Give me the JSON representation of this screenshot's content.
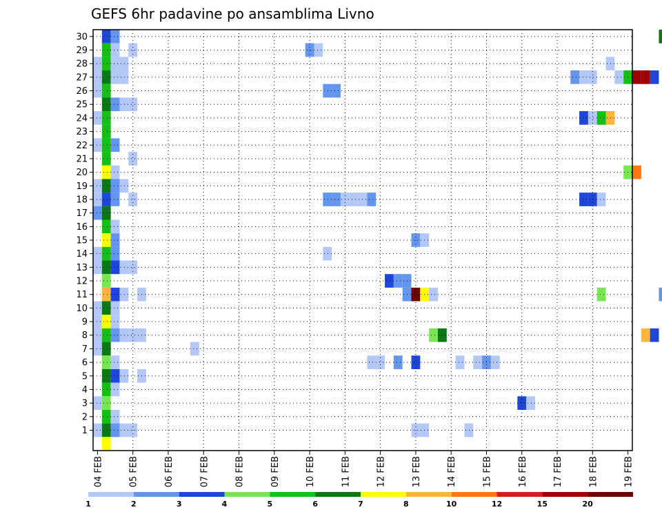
{
  "chart_data": {
    "type": "heatmap",
    "title": "GEFS 6hr padavine po ansamblima Livno",
    "x_labels": [
      "04 FEB",
      "05 FEB",
      "06 FEB",
      "07 FEB",
      "08 FEB",
      "09 FEB",
      "10 FEB",
      "11 FEB",
      "12 FEB",
      "13 FEB",
      "14 FEB",
      "15 FEB",
      "16 FEB",
      "17 FEB",
      "18 FEB",
      "19 FEB"
    ],
    "y_labels": [
      "1",
      "2",
      "3",
      "4",
      "5",
      "6",
      "7",
      "8",
      "9",
      "10",
      "11",
      "12",
      "13",
      "14",
      "15",
      "16",
      "17",
      "18",
      "19",
      "20",
      "21",
      "22",
      "23",
      "24",
      "25",
      "26",
      "27",
      "28",
      "29",
      "30"
    ],
    "steps_per_day": 4,
    "legend": {
      "labels": [
        "1",
        "2",
        "3",
        "4",
        "5",
        "6",
        "7",
        "8",
        "10",
        "12",
        "15",
        "20"
      ],
      "colors": [
        "#b4c8f8",
        "#6496f0",
        "#1e46d8",
        "#78e650",
        "#14c014",
        "#0a7814",
        "#ffff00",
        "#ffb43c",
        "#ff7814",
        "#d21e1e",
        "#a00000",
        "#6e0000"
      ]
    },
    "cells": [
      {
        "member": 30,
        "col": 1,
        "v": 3
      },
      {
        "member": 30,
        "col": 2,
        "v": 2
      },
      {
        "member": 30,
        "col": 64,
        "v": 6
      },
      {
        "member": 30,
        "col": 65,
        "v": 20
      },
      {
        "member": 30,
        "col": 71,
        "v": 8
      },
      {
        "member": 29,
        "col": 1,
        "v": 5
      },
      {
        "member": 29,
        "col": 2,
        "v": 1
      },
      {
        "member": 29,
        "col": 4,
        "v": 1
      },
      {
        "member": 29,
        "col": 24,
        "v": 2
      },
      {
        "member": 29,
        "col": 25,
        "v": 1
      },
      {
        "member": 28,
        "col": 0,
        "v": 1
      },
      {
        "member": 28,
        "col": 1,
        "v": 5
      },
      {
        "member": 28,
        "col": 2,
        "v": 1
      },
      {
        "member": 28,
        "col": 3,
        "v": 1
      },
      {
        "member": 28,
        "col": 58,
        "v": 1
      },
      {
        "member": 27,
        "col": 0,
        "v": 1
      },
      {
        "member": 27,
        "col": 1,
        "v": 6
      },
      {
        "member": 27,
        "col": 2,
        "v": 1
      },
      {
        "member": 27,
        "col": 3,
        "v": 1
      },
      {
        "member": 27,
        "col": 54,
        "v": 2
      },
      {
        "member": 27,
        "col": 55,
        "v": 1
      },
      {
        "member": 27,
        "col": 56,
        "v": 1
      },
      {
        "member": 27,
        "col": 59,
        "v": 1
      },
      {
        "member": 27,
        "col": 60,
        "v": 5
      },
      {
        "member": 27,
        "col": 61,
        "v": 15
      },
      {
        "member": 27,
        "col": 62,
        "v": 15
      },
      {
        "member": 27,
        "col": 63,
        "v": 3
      },
      {
        "member": 27,
        "col": 65,
        "v": 5
      },
      {
        "member": 27,
        "col": 68,
        "v": 3
      },
      {
        "member": 27,
        "col": 69,
        "v": 1
      },
      {
        "member": 27,
        "col": 70,
        "v": 8
      },
      {
        "member": 27,
        "col": 71,
        "v": 20
      },
      {
        "member": 27,
        "col": 72,
        "v": 20
      },
      {
        "member": 26,
        "col": 0,
        "v": 1
      },
      {
        "member": 26,
        "col": 1,
        "v": 5
      },
      {
        "member": 26,
        "col": 26,
        "v": 2
      },
      {
        "member": 26,
        "col": 27,
        "v": 2
      },
      {
        "member": 26,
        "col": 67,
        "v": 1
      },
      {
        "member": 25,
        "col": 1,
        "v": 6
      },
      {
        "member": 25,
        "col": 2,
        "v": 2
      },
      {
        "member": 25,
        "col": 3,
        "v": 1
      },
      {
        "member": 25,
        "col": 4,
        "v": 1
      },
      {
        "member": 25,
        "col": 67,
        "v": 1
      },
      {
        "member": 25,
        "col": 68,
        "v": 2
      },
      {
        "member": 25,
        "col": 69,
        "v": 7
      },
      {
        "member": 25,
        "col": 70,
        "v": 7
      },
      {
        "member": 25,
        "col": 71,
        "v": 5
      },
      {
        "member": 25,
        "col": 72,
        "v": 6
      },
      {
        "member": 24,
        "col": 0,
        "v": 1
      },
      {
        "member": 24,
        "col": 1,
        "v": 5
      },
      {
        "member": 24,
        "col": 55,
        "v": 3
      },
      {
        "member": 24,
        "col": 56,
        "v": 1
      },
      {
        "member": 24,
        "col": 57,
        "v": 5
      },
      {
        "member": 24,
        "col": 58,
        "v": 8
      },
      {
        "member": 24,
        "col": 67,
        "v": 1
      },
      {
        "member": 24,
        "col": 68,
        "v": 10
      },
      {
        "member": 24,
        "col": 69,
        "v": 5
      },
      {
        "member": 24,
        "col": 70,
        "v": 3
      },
      {
        "member": 24,
        "col": 71,
        "v": 6
      },
      {
        "member": 23,
        "col": 1,
        "v": 5
      },
      {
        "member": 23,
        "col": 72,
        "v": 3
      },
      {
        "member": 22,
        "col": 0,
        "v": 1
      },
      {
        "member": 22,
        "col": 1,
        "v": 5
      },
      {
        "member": 22,
        "col": 2,
        "v": 2
      },
      {
        "member": 22,
        "col": 68,
        "v": 1
      },
      {
        "member": 22,
        "col": 69,
        "v": 1
      },
      {
        "member": 22,
        "col": 70,
        "v": 1
      },
      {
        "member": 22,
        "col": 71,
        "v": 1
      },
      {
        "member": 21,
        "col": 1,
        "v": 5
      },
      {
        "member": 21,
        "col": 4,
        "v": 1
      },
      {
        "member": 20,
        "col": 1,
        "v": 7
      },
      {
        "member": 20,
        "col": 2,
        "v": 1
      },
      {
        "member": 20,
        "col": 60,
        "v": 4
      },
      {
        "member": 20,
        "col": 61,
        "v": 10
      },
      {
        "member": 19,
        "col": 0,
        "v": 1
      },
      {
        "member": 19,
        "col": 1,
        "v": 6
      },
      {
        "member": 19,
        "col": 2,
        "v": 2
      },
      {
        "member": 19,
        "col": 3,
        "v": 1
      },
      {
        "member": 19,
        "col": 66,
        "v": 1
      },
      {
        "member": 18,
        "col": 0,
        "v": 1
      },
      {
        "member": 18,
        "col": 1,
        "v": 3
      },
      {
        "member": 18,
        "col": 2,
        "v": 2
      },
      {
        "member": 18,
        "col": 4,
        "v": 1
      },
      {
        "member": 18,
        "col": 26,
        "v": 2
      },
      {
        "member": 18,
        "col": 27,
        "v": 2
      },
      {
        "member": 18,
        "col": 28,
        "v": 1
      },
      {
        "member": 18,
        "col": 29,
        "v": 1
      },
      {
        "member": 18,
        "col": 30,
        "v": 1
      },
      {
        "member": 18,
        "col": 31,
        "v": 2
      },
      {
        "member": 18,
        "col": 55,
        "v": 3
      },
      {
        "member": 18,
        "col": 56,
        "v": 3
      },
      {
        "member": 18,
        "col": 57,
        "v": 1
      },
      {
        "member": 17,
        "col": 0,
        "v": 2
      },
      {
        "member": 17,
        "col": 1,
        "v": 6
      },
      {
        "member": 16,
        "col": 1,
        "v": 5
      },
      {
        "member": 16,
        "col": 2,
        "v": 1
      },
      {
        "member": 16,
        "col": 72,
        "v": 1
      },
      {
        "member": 15,
        "col": 1,
        "v": 7
      },
      {
        "member": 15,
        "col": 2,
        "v": 2
      },
      {
        "member": 15,
        "col": 36,
        "v": 2
      },
      {
        "member": 15,
        "col": 37,
        "v": 1
      },
      {
        "member": 14,
        "col": 0,
        "v": 1
      },
      {
        "member": 14,
        "col": 1,
        "v": 5
      },
      {
        "member": 14,
        "col": 2,
        "v": 2
      },
      {
        "member": 14,
        "col": 26,
        "v": 1
      },
      {
        "member": 13,
        "col": 0,
        "v": 1
      },
      {
        "member": 13,
        "col": 1,
        "v": 6
      },
      {
        "member": 13,
        "col": 2,
        "v": 3
      },
      {
        "member": 13,
        "col": 3,
        "v": 1
      },
      {
        "member": 13,
        "col": 4,
        "v": 1
      },
      {
        "member": 12,
        "col": 1,
        "v": 4
      },
      {
        "member": 12,
        "col": 33,
        "v": 3
      },
      {
        "member": 12,
        "col": 34,
        "v": 2
      },
      {
        "member": 12,
        "col": 35,
        "v": 2
      },
      {
        "member": 11,
        "col": 1,
        "v": 8
      },
      {
        "member": 11,
        "col": 2,
        "v": 3
      },
      {
        "member": 11,
        "col": 3,
        "v": 1
      },
      {
        "member": 11,
        "col": 5,
        "v": 1
      },
      {
        "member": 11,
        "col": 35,
        "v": 2
      },
      {
        "member": 11,
        "col": 36,
        "v": 20
      },
      {
        "member": 11,
        "col": 37,
        "v": 7
      },
      {
        "member": 11,
        "col": 38,
        "v": 1
      },
      {
        "member": 11,
        "col": 57,
        "v": 4
      },
      {
        "member": 11,
        "col": 64,
        "v": 2
      },
      {
        "member": 11,
        "col": 65,
        "v": 2
      },
      {
        "member": 11,
        "col": 71,
        "v": 7
      },
      {
        "member": 11,
        "col": 72,
        "v": 6
      },
      {
        "member": 10,
        "col": 0,
        "v": 1
      },
      {
        "member": 10,
        "col": 1,
        "v": 6
      },
      {
        "member": 10,
        "col": 2,
        "v": 1
      },
      {
        "member": 9,
        "col": 0,
        "v": 1
      },
      {
        "member": 9,
        "col": 1,
        "v": 7
      },
      {
        "member": 9,
        "col": 2,
        "v": 1
      },
      {
        "member": 8,
        "col": 0,
        "v": 1
      },
      {
        "member": 8,
        "col": 1,
        "v": 5
      },
      {
        "member": 8,
        "col": 2,
        "v": 2
      },
      {
        "member": 8,
        "col": 3,
        "v": 1
      },
      {
        "member": 8,
        "col": 4,
        "v": 1
      },
      {
        "member": 8,
        "col": 5,
        "v": 1
      },
      {
        "member": 8,
        "col": 38,
        "v": 4
      },
      {
        "member": 8,
        "col": 39,
        "v": 6
      },
      {
        "member": 8,
        "col": 62,
        "v": 8
      },
      {
        "member": 8,
        "col": 63,
        "v": 3
      },
      {
        "member": 8,
        "col": 68,
        "v": 3
      },
      {
        "member": 8,
        "col": 69,
        "v": 1
      },
      {
        "member": 7,
        "col": 0,
        "v": 1
      },
      {
        "member": 7,
        "col": 1,
        "v": 6
      },
      {
        "member": 7,
        "col": 11,
        "v": 1
      },
      {
        "member": 6,
        "col": 1,
        "v": 4
      },
      {
        "member": 6,
        "col": 2,
        "v": 1
      },
      {
        "member": 6,
        "col": 31,
        "v": 1
      },
      {
        "member": 6,
        "col": 32,
        "v": 1
      },
      {
        "member": 6,
        "col": 34,
        "v": 2
      },
      {
        "member": 6,
        "col": 36,
        "v": 3
      },
      {
        "member": 6,
        "col": 41,
        "v": 1
      },
      {
        "member": 6,
        "col": 43,
        "v": 1
      },
      {
        "member": 6,
        "col": 44,
        "v": 2
      },
      {
        "member": 6,
        "col": 45,
        "v": 1
      },
      {
        "member": 6,
        "col": 67,
        "v": 2
      },
      {
        "member": 6,
        "col": 68,
        "v": 7
      },
      {
        "member": 6,
        "col": 69,
        "v": 8
      },
      {
        "member": 6,
        "col": 70,
        "v": 1
      },
      {
        "member": 5,
        "col": 1,
        "v": 6
      },
      {
        "member": 5,
        "col": 2,
        "v": 3
      },
      {
        "member": 5,
        "col": 3,
        "v": 1
      },
      {
        "member": 5,
        "col": 5,
        "v": 1
      },
      {
        "member": 5,
        "col": 66,
        "v": 1
      },
      {
        "member": 4,
        "col": 1,
        "v": 5
      },
      {
        "member": 4,
        "col": 2,
        "v": 1
      },
      {
        "member": 3,
        "col": 0,
        "v": 1
      },
      {
        "member": 3,
        "col": 1,
        "v": 4
      },
      {
        "member": 3,
        "col": 48,
        "v": 3
      },
      {
        "member": 3,
        "col": 49,
        "v": 1
      },
      {
        "member": 3,
        "col": 72,
        "v": 1
      },
      {
        "member": 2,
        "col": 1,
        "v": 5
      },
      {
        "member": 2,
        "col": 2,
        "v": 1
      },
      {
        "member": 2,
        "col": 71,
        "v": 2
      },
      {
        "member": 2,
        "col": 72,
        "v": 4
      },
      {
        "member": 1,
        "col": 0,
        "v": 1
      },
      {
        "member": 1,
        "col": 1,
        "v": 6
      },
      {
        "member": 1,
        "col": 2,
        "v": 2
      },
      {
        "member": 1,
        "col": 3,
        "v": 1
      },
      {
        "member": 1,
        "col": 4,
        "v": 1
      },
      {
        "member": 1,
        "col": 36,
        "v": 1
      },
      {
        "member": 1,
        "col": 37,
        "v": 1
      },
      {
        "member": 1,
        "col": 42,
        "v": 1
      },
      {
        "member": 0,
        "col": 1,
        "v": 7
      },
      {
        "member": 0,
        "col": 67,
        "v": 1
      },
      {
        "member": 0,
        "col": 68,
        "v": 6
      },
      {
        "member": 0,
        "col": 69,
        "v": 5
      },
      {
        "member": 0,
        "col": 70,
        "v": 1
      }
    ]
  }
}
